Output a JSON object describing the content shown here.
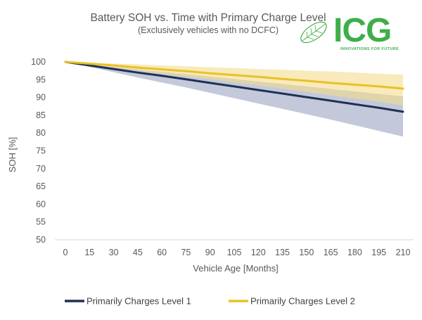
{
  "logo": {
    "text": "ICG",
    "tagline": "INNOVATIONS FOR FUTURE"
  },
  "colors": {
    "level1": "#1f3153",
    "level1_band": "#b9c0d3",
    "level2": "#e8c225",
    "level2_band": "#f3dc8c",
    "logo_green": "#3fae4a",
    "axis": "#d9d9d9",
    "text": "#595959"
  },
  "chart_data": {
    "type": "line",
    "title": "Battery SOH vs. Time with Primary Charge Level",
    "subtitle": "(Exclusively vehicles with no DCFC)",
    "xlabel": "Vehicle Age [Months]",
    "ylabel": "SOH [%]",
    "x": [
      0,
      15,
      30,
      45,
      60,
      75,
      90,
      105,
      120,
      135,
      150,
      165,
      180,
      195,
      210
    ],
    "xlim": [
      0,
      210
    ],
    "ylim": [
      50,
      100
    ],
    "yticks": [
      50,
      55,
      60,
      65,
      70,
      75,
      80,
      85,
      90,
      95,
      100
    ],
    "grid": false,
    "legend": "bottom",
    "series": [
      {
        "name": "Primarily Charges Level 1",
        "color": "#1f3153",
        "band_color": "#b9c0d3",
        "values": [
          100,
          99.0,
          98.0,
          97.0,
          96.1,
          95.1,
          94.1,
          93.1,
          92.1,
          91.1,
          90.1,
          89.1,
          88.1,
          87.1,
          86.0
        ],
        "upper": [
          100,
          99.3,
          98.6,
          97.9,
          97.2,
          96.6,
          95.9,
          95.2,
          94.5,
          93.8,
          93.1,
          92.4,
          91.7,
          91.0,
          90.3
        ],
        "lower": [
          100,
          98.6,
          97.1,
          95.6,
          94.2,
          92.8,
          91.3,
          89.8,
          88.3,
          86.8,
          85.3,
          83.8,
          82.2,
          80.6,
          79.0
        ]
      },
      {
        "name": "Primarily Charges Level 2",
        "color": "#e8c225",
        "band_color": "#f3dc8c",
        "values": [
          100,
          99.5,
          99.0,
          98.4,
          97.9,
          97.4,
          96.8,
          96.3,
          95.8,
          95.2,
          94.7,
          94.1,
          93.6,
          93.1,
          92.5
        ],
        "upper": [
          100,
          99.8,
          99.5,
          99.3,
          99.0,
          98.8,
          98.5,
          98.3,
          98.0,
          97.8,
          97.5,
          97.3,
          97.0,
          96.7,
          96.4
        ],
        "lower": [
          100,
          99.2,
          98.4,
          97.5,
          96.7,
          95.9,
          95.1,
          94.2,
          93.4,
          92.5,
          91.6,
          90.6,
          89.7,
          88.8,
          87.8
        ]
      }
    ]
  }
}
